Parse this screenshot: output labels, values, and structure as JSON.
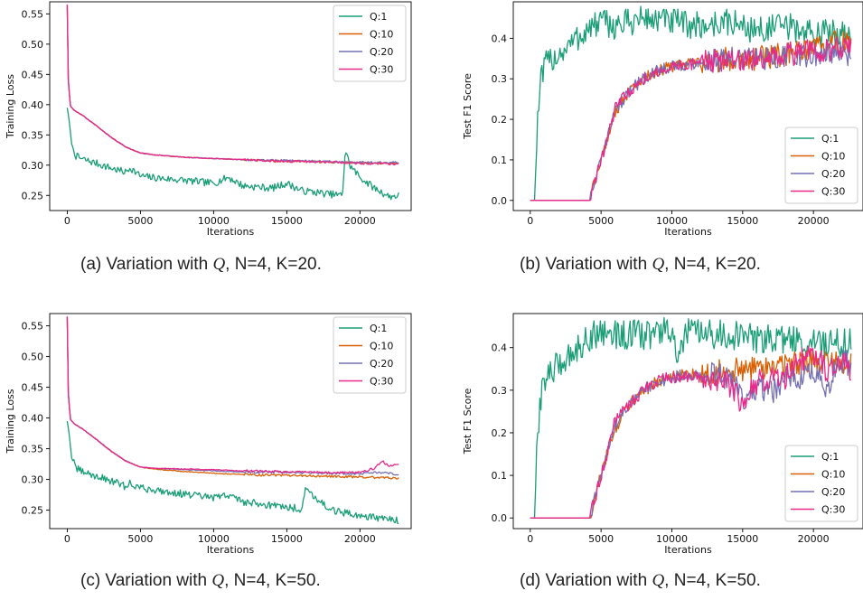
{
  "colors": {
    "Q:1": "#1b9e77",
    "Q:10": "#d95f02",
    "Q:20": "#7570b3",
    "Q:30": "#e7298a"
  },
  "captions": [
    {
      "prefix": "(a) Variation with ",
      "q": "Q",
      "suffix": ", N=4, K=20."
    },
    {
      "prefix": "(b) Variation with ",
      "q": "Q",
      "suffix": ", N=4, K=20."
    },
    {
      "prefix": "(c) Variation with ",
      "q": "Q",
      "suffix": ", N=4, K=50."
    },
    {
      "prefix": "(d) Variation with ",
      "q": "Q",
      "suffix": ", N=4, K=50."
    }
  ],
  "chart_data": [
    {
      "id": "a",
      "type": "line",
      "xlabel": "Iterations",
      "ylabel": "Training Loss",
      "xlim": [
        -1200,
        23500
      ],
      "ylim": [
        0.225,
        0.57
      ],
      "xticks": [
        0,
        5000,
        10000,
        15000,
        20000
      ],
      "yticks": [
        0.25,
        0.3,
        0.35,
        0.4,
        0.45,
        0.5,
        0.55
      ],
      "ytick_labels": [
        "0.25",
        "0.30",
        "0.35",
        "0.40",
        "0.45",
        "0.50",
        "0.55"
      ],
      "legend_position": "upper-right",
      "series": [
        {
          "name": "Q:1",
          "x": [
            0,
            100,
            300,
            600,
            1000,
            2000,
            3000,
            4000,
            4300,
            5000,
            6000,
            8000,
            10000,
            11000,
            12000,
            14000,
            15000,
            16000,
            18000,
            18800,
            19000,
            19300,
            20000,
            21000,
            22000,
            22700
          ],
          "y": [
            0.395,
            0.38,
            0.335,
            0.315,
            0.31,
            0.303,
            0.295,
            0.288,
            0.296,
            0.282,
            0.279,
            0.275,
            0.27,
            0.28,
            0.266,
            0.262,
            0.27,
            0.258,
            0.252,
            0.25,
            0.326,
            0.3,
            0.28,
            0.262,
            0.248,
            0.25
          ]
        },
        {
          "name": "Q:10",
          "x": [
            0,
            50,
            200,
            500,
            1000,
            2000,
            3000,
            4000,
            5000,
            6000,
            8000,
            10000,
            12000,
            14000,
            16000,
            18000,
            20000,
            22700
          ],
          "y": [
            0.565,
            0.45,
            0.398,
            0.39,
            0.383,
            0.365,
            0.346,
            0.33,
            0.32,
            0.317,
            0.313,
            0.311,
            0.309,
            0.307,
            0.306,
            0.305,
            0.304,
            0.303
          ]
        },
        {
          "name": "Q:20",
          "x": [
            0,
            50,
            200,
            500,
            1000,
            2000,
            3000,
            4000,
            5000,
            6000,
            8000,
            10000,
            12000,
            14000,
            16000,
            18000,
            20000,
            22700
          ],
          "y": [
            0.565,
            0.45,
            0.398,
            0.39,
            0.383,
            0.365,
            0.346,
            0.33,
            0.32,
            0.317,
            0.313,
            0.311,
            0.309,
            0.308,
            0.307,
            0.306,
            0.305,
            0.304
          ]
        },
        {
          "name": "Q:30",
          "x": [
            0,
            50,
            200,
            500,
            1000,
            2000,
            3000,
            4000,
            5000,
            6000,
            8000,
            10000,
            12000,
            14000,
            16000,
            18000,
            20000,
            22700
          ],
          "y": [
            0.565,
            0.45,
            0.398,
            0.39,
            0.383,
            0.365,
            0.346,
            0.33,
            0.32,
            0.317,
            0.313,
            0.311,
            0.309,
            0.307,
            0.306,
            0.305,
            0.303,
            0.302
          ]
        }
      ]
    },
    {
      "id": "b",
      "type": "line",
      "xlabel": "Iterations",
      "ylabel": "Test F1 Score",
      "xlim": [
        -1200,
        23500
      ],
      "ylim": [
        -0.025,
        0.49
      ],
      "xticks": [
        0,
        5000,
        10000,
        15000,
        20000
      ],
      "yticks": [
        0.0,
        0.1,
        0.2,
        0.3,
        0.4
      ],
      "ytick_labels": [
        "0.0",
        "0.1",
        "0.2",
        "0.3",
        "0.4"
      ],
      "legend_position": "lower-right",
      "series": [
        {
          "name": "Q:1",
          "x": [
            0,
            300,
            450,
            700,
            1000,
            1500,
            2000,
            3000,
            4000,
            5000,
            6000,
            8000,
            10000,
            12000,
            14000,
            16000,
            18000,
            20000,
            22700
          ],
          "y": [
            0.0,
            0.0,
            0.15,
            0.28,
            0.33,
            0.35,
            0.36,
            0.39,
            0.42,
            0.44,
            0.43,
            0.45,
            0.44,
            0.43,
            0.44,
            0.42,
            0.43,
            0.41,
            0.42
          ]
        },
        {
          "name": "Q:10",
          "x": [
            0,
            4200,
            4500,
            5000,
            5500,
            6000,
            7000,
            8000,
            9000,
            10000,
            12000,
            14000,
            16000,
            18000,
            20000,
            21500,
            22700
          ],
          "y": [
            0.0,
            0.0,
            0.04,
            0.1,
            0.16,
            0.22,
            0.27,
            0.3,
            0.32,
            0.33,
            0.34,
            0.35,
            0.35,
            0.36,
            0.37,
            0.39,
            0.39
          ]
        },
        {
          "name": "Q:20",
          "x": [
            0,
            4200,
            4500,
            5000,
            5500,
            6000,
            7000,
            8000,
            9000,
            10000,
            12000,
            14000,
            16000,
            18000,
            20000,
            21500,
            22700
          ],
          "y": [
            0.0,
            0.0,
            0.04,
            0.1,
            0.16,
            0.22,
            0.27,
            0.3,
            0.32,
            0.33,
            0.34,
            0.35,
            0.35,
            0.355,
            0.36,
            0.37,
            0.36
          ]
        },
        {
          "name": "Q:30",
          "x": [
            0,
            4200,
            4500,
            5000,
            5500,
            6000,
            7000,
            8000,
            9000,
            10000,
            12000,
            14000,
            16000,
            18000,
            20000,
            21500,
            22700
          ],
          "y": [
            0.0,
            0.0,
            0.04,
            0.1,
            0.16,
            0.23,
            0.27,
            0.3,
            0.32,
            0.33,
            0.34,
            0.35,
            0.35,
            0.36,
            0.37,
            0.375,
            0.37
          ]
        }
      ]
    },
    {
      "id": "c",
      "type": "line",
      "xlabel": "Iterations",
      "ylabel": "Training Loss",
      "xlim": [
        -1200,
        23500
      ],
      "ylim": [
        0.22,
        0.57
      ],
      "xticks": [
        0,
        5000,
        10000,
        15000,
        20000
      ],
      "yticks": [
        0.25,
        0.3,
        0.35,
        0.4,
        0.45,
        0.5,
        0.55
      ],
      "ytick_labels": [
        "0.25",
        "0.30",
        "0.35",
        "0.40",
        "0.45",
        "0.50",
        "0.55"
      ],
      "legend_position": "upper-right",
      "series": [
        {
          "name": "Q:1",
          "x": [
            0,
            100,
            300,
            600,
            1000,
            2000,
            3000,
            4000,
            4300,
            5000,
            6000,
            8000,
            10000,
            11000,
            12000,
            14000,
            16000,
            16300,
            18000,
            19000,
            20000,
            21000,
            22000,
            22700
          ],
          "y": [
            0.395,
            0.38,
            0.335,
            0.318,
            0.313,
            0.305,
            0.298,
            0.288,
            0.294,
            0.286,
            0.283,
            0.276,
            0.27,
            0.275,
            0.264,
            0.258,
            0.252,
            0.285,
            0.25,
            0.245,
            0.242,
            0.238,
            0.235,
            0.232
          ]
        },
        {
          "name": "Q:10",
          "x": [
            0,
            50,
            200,
            500,
            1000,
            2000,
            3000,
            4000,
            5000,
            6000,
            8000,
            10000,
            12000,
            14000,
            16000,
            18000,
            20000,
            22700
          ],
          "y": [
            0.565,
            0.45,
            0.398,
            0.39,
            0.383,
            0.365,
            0.346,
            0.33,
            0.32,
            0.317,
            0.313,
            0.31,
            0.308,
            0.307,
            0.306,
            0.305,
            0.304,
            0.302
          ]
        },
        {
          "name": "Q:20",
          "x": [
            0,
            50,
            200,
            500,
            1000,
            2000,
            3000,
            4000,
            5000,
            6000,
            8000,
            10000,
            12000,
            14000,
            16000,
            18000,
            20000,
            21000,
            22000,
            22700
          ],
          "y": [
            0.565,
            0.45,
            0.398,
            0.39,
            0.383,
            0.365,
            0.346,
            0.33,
            0.32,
            0.318,
            0.316,
            0.314,
            0.312,
            0.312,
            0.311,
            0.31,
            0.309,
            0.312,
            0.31,
            0.308
          ]
        },
        {
          "name": "Q:30",
          "x": [
            0,
            50,
            200,
            500,
            1000,
            2000,
            3000,
            4000,
            5000,
            6000,
            8000,
            10000,
            12000,
            14000,
            16000,
            18000,
            20000,
            21000,
            21500,
            22000,
            22700
          ],
          "y": [
            0.565,
            0.45,
            0.398,
            0.39,
            0.383,
            0.365,
            0.346,
            0.33,
            0.32,
            0.318,
            0.317,
            0.316,
            0.314,
            0.313,
            0.312,
            0.311,
            0.312,
            0.318,
            0.33,
            0.322,
            0.326
          ]
        }
      ]
    },
    {
      "id": "d",
      "type": "line",
      "xlabel": "Iterations",
      "ylabel": "Test F1 Score",
      "xlim": [
        -1200,
        23500
      ],
      "ylim": [
        -0.025,
        0.48
      ],
      "xticks": [
        0,
        5000,
        10000,
        15000,
        20000
      ],
      "yticks": [
        0.0,
        0.1,
        0.2,
        0.3,
        0.4
      ],
      "ytick_labels": [
        "0.0",
        "0.1",
        "0.2",
        "0.3",
        "0.4"
      ],
      "legend_position": "lower-right",
      "series": [
        {
          "name": "Q:1",
          "x": [
            0,
            300,
            450,
            700,
            1000,
            1500,
            2000,
            3000,
            4000,
            5000,
            6000,
            8000,
            10000,
            10500,
            11000,
            12000,
            14000,
            16000,
            18000,
            20000,
            22700
          ],
          "y": [
            0.0,
            0.0,
            0.15,
            0.28,
            0.33,
            0.34,
            0.36,
            0.39,
            0.42,
            0.44,
            0.43,
            0.43,
            0.44,
            0.36,
            0.44,
            0.43,
            0.43,
            0.42,
            0.42,
            0.41,
            0.41
          ]
        },
        {
          "name": "Q:10",
          "x": [
            0,
            4200,
            4500,
            5000,
            5500,
            6000,
            7000,
            8000,
            9000,
            10000,
            12000,
            14000,
            16000,
            18000,
            20000,
            21500,
            22700
          ],
          "y": [
            0.0,
            0.0,
            0.04,
            0.1,
            0.16,
            0.21,
            0.27,
            0.3,
            0.32,
            0.33,
            0.34,
            0.345,
            0.35,
            0.36,
            0.37,
            0.36,
            0.36
          ]
        },
        {
          "name": "Q:20",
          "x": [
            0,
            4200,
            4500,
            5000,
            5500,
            6000,
            7000,
            8000,
            9000,
            10000,
            12000,
            14000,
            15000,
            16000,
            17000,
            18000,
            19000,
            20000,
            21000,
            22000,
            22700
          ],
          "y": [
            0.0,
            0.0,
            0.04,
            0.1,
            0.16,
            0.22,
            0.27,
            0.3,
            0.32,
            0.33,
            0.34,
            0.33,
            0.28,
            0.31,
            0.29,
            0.33,
            0.32,
            0.34,
            0.31,
            0.37,
            0.36
          ]
        },
        {
          "name": "Q:30",
          "x": [
            0,
            4200,
            4500,
            5000,
            5500,
            6000,
            7000,
            8000,
            9000,
            10000,
            12000,
            14000,
            15000,
            16000,
            18000,
            19000,
            20000,
            21000,
            22000,
            22700
          ],
          "y": [
            0.0,
            0.0,
            0.04,
            0.1,
            0.16,
            0.23,
            0.27,
            0.3,
            0.32,
            0.33,
            0.33,
            0.32,
            0.26,
            0.32,
            0.33,
            0.37,
            0.39,
            0.34,
            0.38,
            0.34
          ]
        }
      ]
    }
  ]
}
